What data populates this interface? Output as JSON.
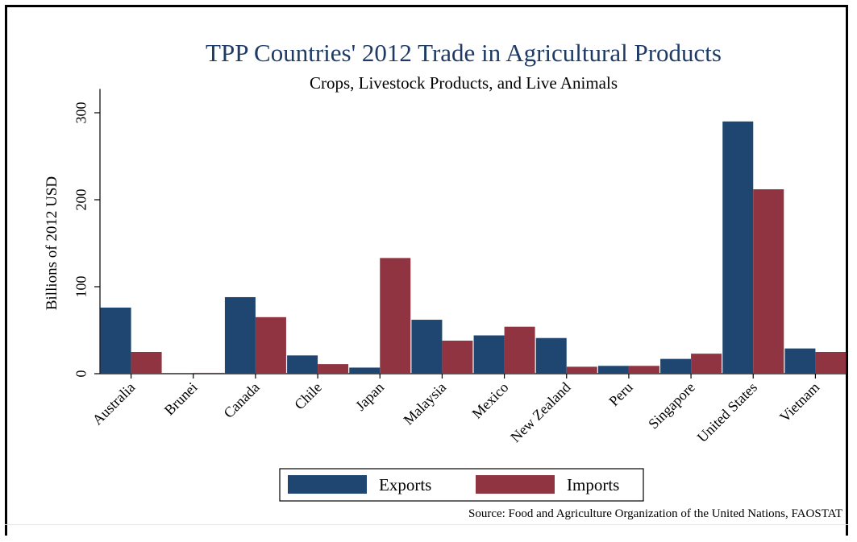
{
  "chart_data": {
    "type": "bar",
    "title": "TPP Countries' 2012 Trade in Agricultural Products",
    "subtitle": "Crops, Livestock Products, and Live Animals",
    "xlabel": "",
    "ylabel": "Billions of 2012 USD",
    "ylim": [
      0,
      320
    ],
    "yticks": [
      "0",
      "100",
      "200",
      "300"
    ],
    "ytick_values": [
      0,
      100,
      200,
      300
    ],
    "categories": [
      "Australia",
      "Brunei",
      "Canada",
      "Chile",
      "Japan",
      "Malaysia",
      "Mexico",
      "New Zealand",
      "Peru",
      "Singapore",
      "United States",
      "Vietnam"
    ],
    "series": [
      {
        "name": "Exports",
        "color": "#1f4670",
        "values": [
          76,
          0,
          88,
          21,
          7,
          62,
          44,
          41,
          9,
          17,
          290,
          29
        ]
      },
      {
        "name": "Imports",
        "color": "#8f3440",
        "values": [
          25,
          1,
          65,
          11,
          133,
          38,
          54,
          8,
          9,
          23,
          212,
          25
        ]
      }
    ],
    "grid": false,
    "legend_position": "bottom",
    "source": "Source: Food and Agriculture Organization of the United Nations, FAOSTAT"
  }
}
